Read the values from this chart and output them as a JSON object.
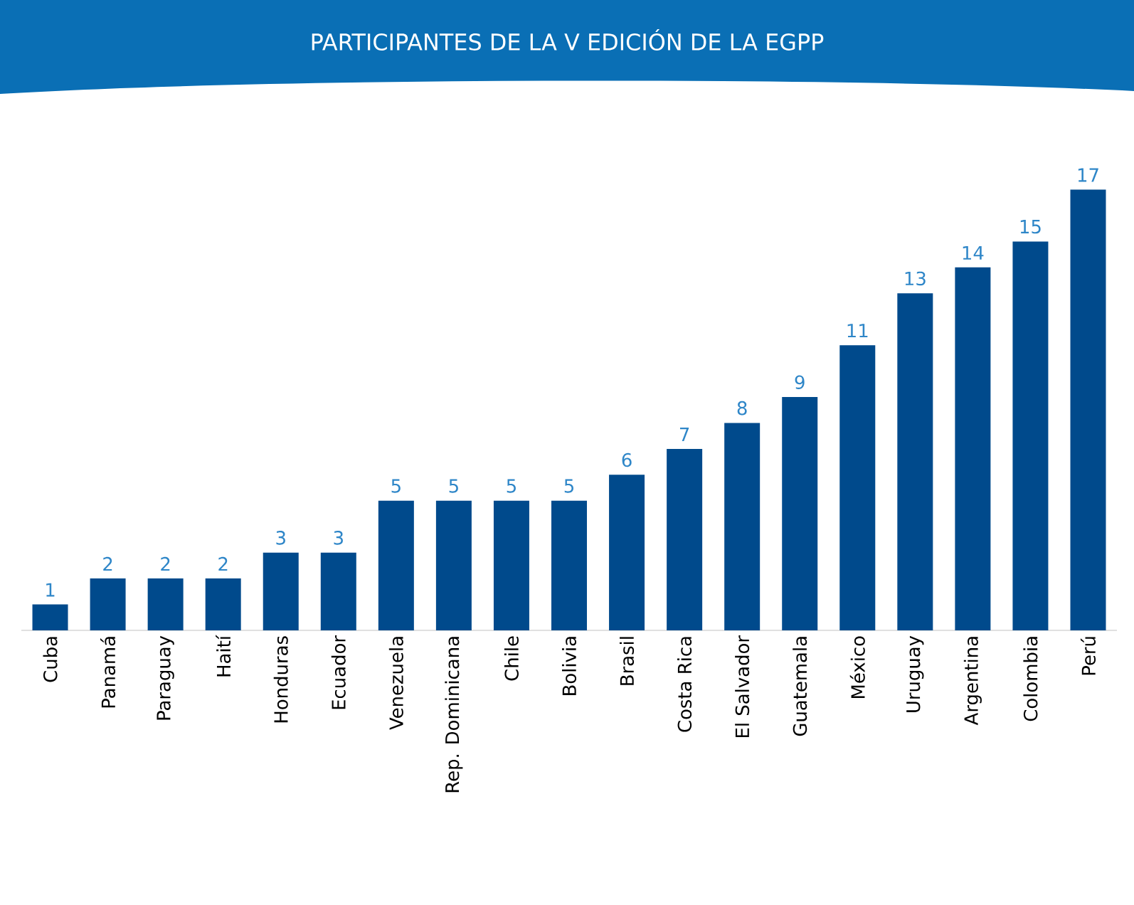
{
  "chart_data": {
    "type": "bar",
    "title": "PARTICIPANTES DE LA V EDICIÓN DE LA EGPP",
    "categories": [
      "Cuba",
      "Panamá",
      "Paraguay",
      "Haití",
      "Honduras",
      "Ecuador",
      "Venezuela",
      "Rep. Dominicana",
      "Chile",
      "Bolivia",
      "Brasil",
      "Costa Rica",
      "El Salvador",
      "Guatemala",
      "México",
      "Uruguay",
      "Argentina",
      "Colombia",
      "Perú"
    ],
    "values": [
      1,
      2,
      2,
      2,
      3,
      3,
      5,
      5,
      5,
      5,
      6,
      7,
      8,
      9,
      11,
      13,
      14,
      15,
      17
    ],
    "color": "#004a8c",
    "data_labels": true
  }
}
